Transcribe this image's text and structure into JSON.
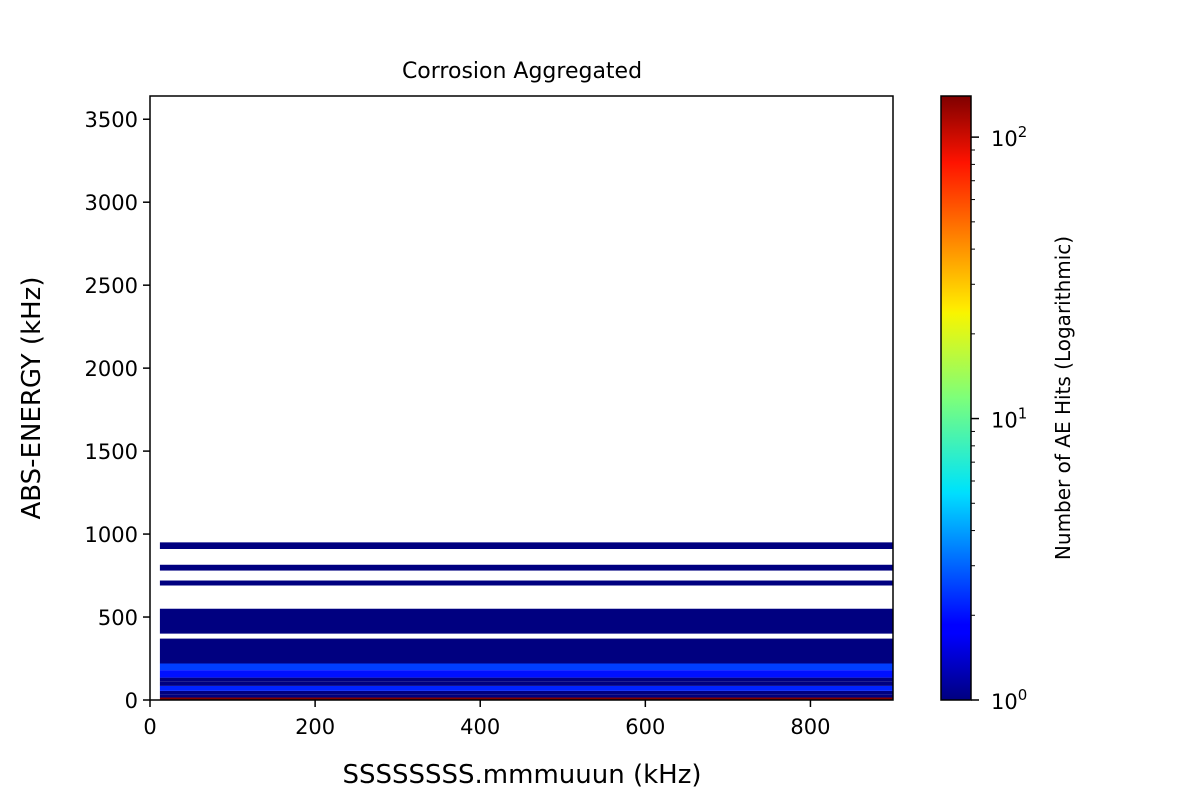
{
  "chart_data": {
    "type": "heatmap",
    "title": "Corrosion Aggregated",
    "xlabel": "SSSSSSSS.mmmuuun (kHz)",
    "ylabel": "ABS-ENERGY (kHz)",
    "xlim": [
      0,
      900
    ],
    "ylim": [
      0,
      3640
    ],
    "xticks": [
      0,
      200,
      400,
      600,
      800
    ],
    "yticks": [
      0,
      500,
      1000,
      1500,
      2000,
      2500,
      3000,
      3500
    ],
    "x_range_of_bands": [
      12,
      900
    ],
    "colormap": "jet",
    "colorbar": {
      "label": "Number of AE Hits (Logarithmic)",
      "scale": "log",
      "range": [
        1,
        140
      ],
      "major_ticks": [
        1,
        10,
        100
      ],
      "major_tick_labels": [
        "10^0",
        "10^1",
        "10^2"
      ]
    },
    "bands": [
      {
        "y0": 0,
        "y1": 15,
        "count": 140
      },
      {
        "y0": 15,
        "y1": 35,
        "count": 1
      },
      {
        "y0": 35,
        "y1": 55,
        "count": 1
      },
      {
        "y0": 55,
        "y1": 85,
        "count": 2.2
      },
      {
        "y0": 85,
        "y1": 110,
        "count": 1
      },
      {
        "y0": 110,
        "y1": 135,
        "count": 1
      },
      {
        "y0": 135,
        "y1": 180,
        "count": 2
      },
      {
        "y0": 180,
        "y1": 220,
        "count": 2.5
      },
      {
        "y0": 220,
        "y1": 370,
        "count": 1
      },
      {
        "y0": 400,
        "y1": 550,
        "count": 1
      },
      {
        "y0": 690,
        "y1": 720,
        "count": 1
      },
      {
        "y0": 780,
        "y1": 815,
        "count": 1
      },
      {
        "y0": 910,
        "y1": 950,
        "count": 1
      }
    ]
  }
}
